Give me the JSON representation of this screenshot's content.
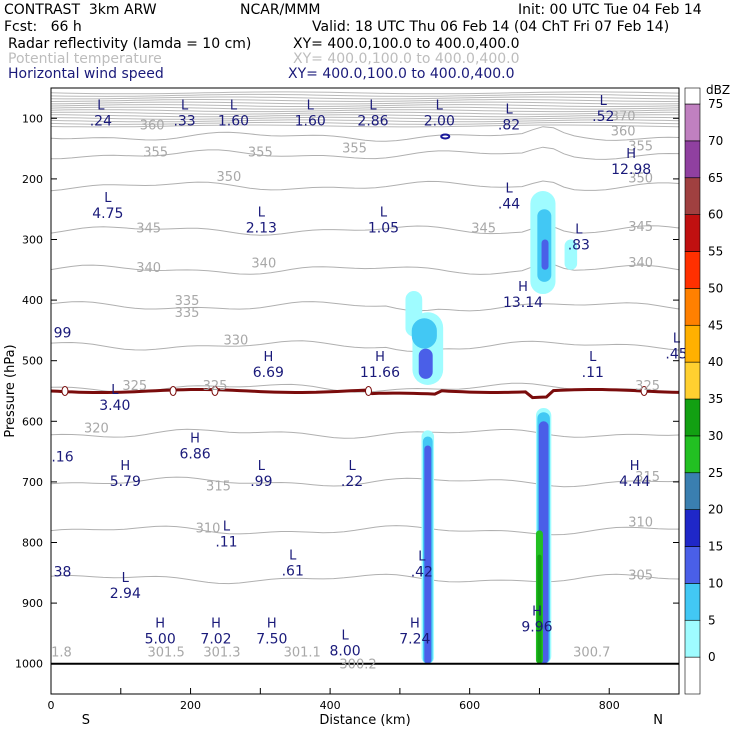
{
  "header": {
    "model": "CONTRAST  3km ARW",
    "source": "NCAR/MMM",
    "init": "Init: 00 UTC Tue 04 Feb 14",
    "fcst": "Fcst:   66 h",
    "valid": "Valid: 18 UTC Thu 06 Feb 14 (04 ChT Fri 07 Feb 14)",
    "fields": [
      {
        "name": "Radar reflectivity (lamda = 10 cm)",
        "xy": "XY= 400.0,100.0 to 400.0,400.0",
        "color": "#000000"
      },
      {
        "name": "Potential temperature",
        "xy": "XY= 400.0,100.0 to 400.0,400.0",
        "color": "#bdbdbd"
      },
      {
        "name": "Horizontal wind speed",
        "xy": "XY= 400.0,100.0 to 400.0,400.0",
        "color": "#1a1a7a"
      }
    ]
  },
  "chart_data": {
    "type": "cross-section",
    "xlabel": "Distance (km)",
    "ylabel": "Pressure (hPa)",
    "xlim": [
      0,
      900
    ],
    "ylim": [
      1050,
      50
    ],
    "xticks": [
      0,
      200,
      400,
      600,
      800
    ],
    "yticks": [
      100,
      200,
      300,
      400,
      500,
      600,
      700,
      800,
      900,
      1000
    ],
    "x_end_labels": {
      "left": "S",
      "right": "N"
    },
    "colorbar": {
      "unit": "dBZ",
      "levels": [
        0,
        5,
        10,
        15,
        20,
        25,
        30,
        35,
        40,
        45,
        50,
        55,
        60,
        65,
        70,
        75
      ],
      "colors": [
        "#ffffff",
        "#9ffcff",
        "#42c8f4",
        "#4a5fe8",
        "#1f27c8",
        "#3a7fb0",
        "#22c022",
        "#12a012",
        "#ffd030",
        "#ffb000",
        "#ff8000",
        "#ff3000",
        "#c01010",
        "#a04040",
        "#9040a0",
        "#c080c0"
      ]
    },
    "theta_labels": [
      {
        "x": 145,
        "p": 110,
        "v": "360"
      },
      {
        "x": 820,
        "p": 120,
        "v": "360"
      },
      {
        "x": 820,
        "p": 95,
        "v": "370"
      },
      {
        "x": 150,
        "p": 155,
        "v": "355"
      },
      {
        "x": 300,
        "p": 155,
        "v": "355"
      },
      {
        "x": 435,
        "p": 148,
        "v": "355"
      },
      {
        "x": 845,
        "p": 145,
        "v": "355"
      },
      {
        "x": 255,
        "p": 195,
        "v": "350"
      },
      {
        "x": 845,
        "p": 198,
        "v": "350"
      },
      {
        "x": 140,
        "p": 280,
        "v": "345"
      },
      {
        "x": 620,
        "p": 280,
        "v": "345"
      },
      {
        "x": 845,
        "p": 278,
        "v": "345"
      },
      {
        "x": 140,
        "p": 345,
        "v": "340"
      },
      {
        "x": 305,
        "p": 338,
        "v": "340"
      },
      {
        "x": 845,
        "p": 337,
        "v": "340"
      },
      {
        "x": 195,
        "p": 400,
        "v": "335"
      },
      {
        "x": 195,
        "p": 420,
        "v": "335"
      },
      {
        "x": 265,
        "p": 465,
        "v": "330"
      },
      {
        "x": 120,
        "p": 540,
        "v": "325"
      },
      {
        "x": 235,
        "p": 540,
        "v": "325"
      },
      {
        "x": 855,
        "p": 540,
        "v": "325"
      },
      {
        "x": 65,
        "p": 610,
        "v": "320"
      },
      {
        "x": 240,
        "p": 706,
        "v": "315"
      },
      {
        "x": 855,
        "p": 690,
        "v": "315"
      },
      {
        "x": 225,
        "p": 775,
        "v": "310"
      },
      {
        "x": 845,
        "p": 765,
        "v": "310"
      },
      {
        "x": 845,
        "p": 853,
        "v": "305"
      },
      {
        "x": 15,
        "p": 980,
        "v": "1.8"
      },
      {
        "x": 165,
        "p": 980,
        "v": "301.5"
      },
      {
        "x": 245,
        "p": 980,
        "v": "301.3"
      },
      {
        "x": 360,
        "p": 980,
        "v": "301.1"
      },
      {
        "x": 440,
        "p": 1000,
        "v": "300.2"
      },
      {
        "x": 775,
        "p": 980,
        "v": "300.7"
      }
    ],
    "wind_extrema": [
      {
        "x": 60,
        "p": 95,
        "t": "L",
        "v": ".24"
      },
      {
        "x": 180,
        "p": 95,
        "t": "L",
        "v": ".33"
      },
      {
        "x": 250,
        "p": 95,
        "t": "L",
        "v": "1.60"
      },
      {
        "x": 360,
        "p": 95,
        "t": "L",
        "v": "1.60"
      },
      {
        "x": 450,
        "p": 95,
        "t": "L",
        "v": "2.86"
      },
      {
        "x": 545,
        "p": 95,
        "t": "L",
        "v": "2.00"
      },
      {
        "x": 645,
        "p": 102,
        "t": "L",
        "v": ".82"
      },
      {
        "x": 780,
        "p": 88,
        "t": "L",
        "v": ".52"
      },
      {
        "x": 820,
        "p": 175,
        "t": "H",
        "v": "12.98"
      },
      {
        "x": 70,
        "p": 248,
        "t": "L",
        "v": "4.75"
      },
      {
        "x": 290,
        "p": 272,
        "t": "L",
        "v": "2.13"
      },
      {
        "x": 465,
        "p": 272,
        "t": "L",
        "v": "1.05"
      },
      {
        "x": 645,
        "p": 232,
        "t": "L",
        "v": ".44"
      },
      {
        "x": 745,
        "p": 300,
        "t": "L",
        "v": ".83"
      },
      {
        "x": 665,
        "p": 395,
        "t": "H",
        "v": "13.14"
      },
      {
        "x": 5,
        "p": 445,
        "t": "",
        "v": "99"
      },
      {
        "x": 885,
        "p": 480,
        "t": "L",
        "v": ".45"
      },
      {
        "x": 300,
        "p": 510,
        "t": "H",
        "v": "6.69"
      },
      {
        "x": 460,
        "p": 510,
        "t": "H",
        "v": "11.66"
      },
      {
        "x": 765,
        "p": 510,
        "t": "L",
        "v": ".11"
      },
      {
        "x": 80,
        "p": 565,
        "t": "L",
        "v": "3.40"
      },
      {
        "x": 5,
        "p": 650,
        "t": "",
        "v": ".16"
      },
      {
        "x": 195,
        "p": 645,
        "t": "H",
        "v": "6.86"
      },
      {
        "x": 95,
        "p": 690,
        "t": "H",
        "v": "5.79"
      },
      {
        "x": 290,
        "p": 690,
        "t": "L",
        "v": ".99"
      },
      {
        "x": 420,
        "p": 690,
        "t": "L",
        "v": ".22"
      },
      {
        "x": 825,
        "p": 690,
        "t": "H",
        "v": "4.44"
      },
      {
        "x": 240,
        "p": 790,
        "t": "L",
        "v": ".11"
      },
      {
        "x": 335,
        "p": 838,
        "t": "L",
        "v": ".61"
      },
      {
        "x": 520,
        "p": 840,
        "t": "L",
        "v": ".42"
      },
      {
        "x": 5,
        "p": 840,
        "t": "",
        "v": "38"
      },
      {
        "x": 95,
        "p": 875,
        "t": "L",
        "v": "2.94"
      },
      {
        "x": 145,
        "p": 950,
        "t": "H",
        "v": "5.00"
      },
      {
        "x": 225,
        "p": 950,
        "t": "H",
        "v": "7.02"
      },
      {
        "x": 305,
        "p": 950,
        "t": "H",
        "v": "7.50"
      },
      {
        "x": 410,
        "p": 970,
        "t": "L",
        "v": "8.00"
      },
      {
        "x": 510,
        "p": 950,
        "t": "H",
        "v": "7.24"
      },
      {
        "x": 685,
        "p": 930,
        "t": "H",
        "v": "9.96"
      }
    ],
    "freezing_level_p": 550,
    "freezing_markers_x": [
      20,
      175,
      235,
      455,
      850
    ]
  }
}
